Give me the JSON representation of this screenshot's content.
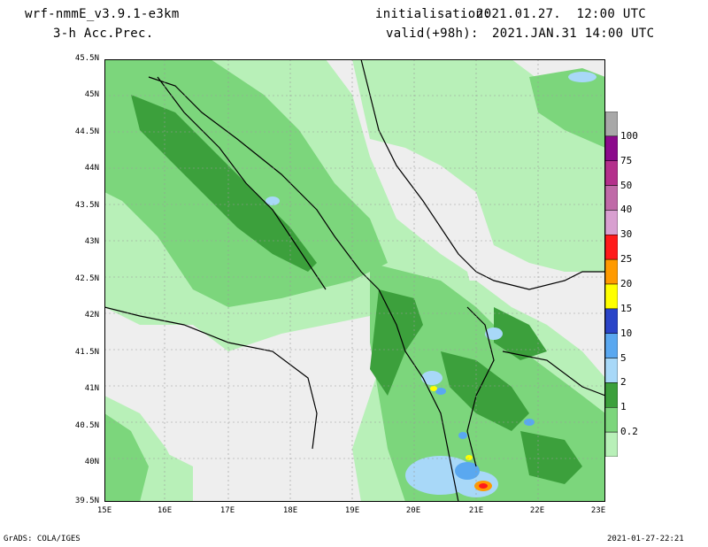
{
  "header": {
    "model": "wrf-nmmE_v3.9.1-e3km",
    "field": "3-h Acc.Prec.",
    "init_label": "initialisation:",
    "init_value": "2021.01.27.  12:00 UTC",
    "valid_label": "valid(+98h):",
    "valid_value": "2021.JAN.31 14:00 UTC"
  },
  "footer": {
    "credit": "GrADS: COLA/IGES",
    "timestamp": "2021-01-27-22:21"
  },
  "axes": {
    "lat_labels": [
      "45.5N",
      "45N",
      "44.5N",
      "44N",
      "43.5N",
      "43N",
      "42.5N",
      "42N",
      "41.5N",
      "41N",
      "40.5N",
      "40N",
      "39.5N"
    ],
    "lon_labels": [
      "15E",
      "16E",
      "17E",
      "18E",
      "19E",
      "20E",
      "21E",
      "22E",
      "23E"
    ]
  },
  "legend": {
    "levels": [
      "0.2",
      "1",
      "2",
      "5",
      "10",
      "15",
      "20",
      "25",
      "30",
      "40",
      "50",
      "75",
      "100"
    ],
    "colors": [
      "#b8f0b8",
      "#7cd67c",
      "#3ca03c",
      "#a8d8f8",
      "#5aa8f0",
      "#2a44c8",
      "#ffff00",
      "#ff9a00",
      "#ff1a1a",
      "#d8a0d0",
      "#c06aa8",
      "#b4308c",
      "#8c0a8c",
      "#a8a8a8"
    ]
  },
  "colors": {
    "background": "#eeeeee",
    "land_border": "#000000",
    "grid": "#999999"
  }
}
